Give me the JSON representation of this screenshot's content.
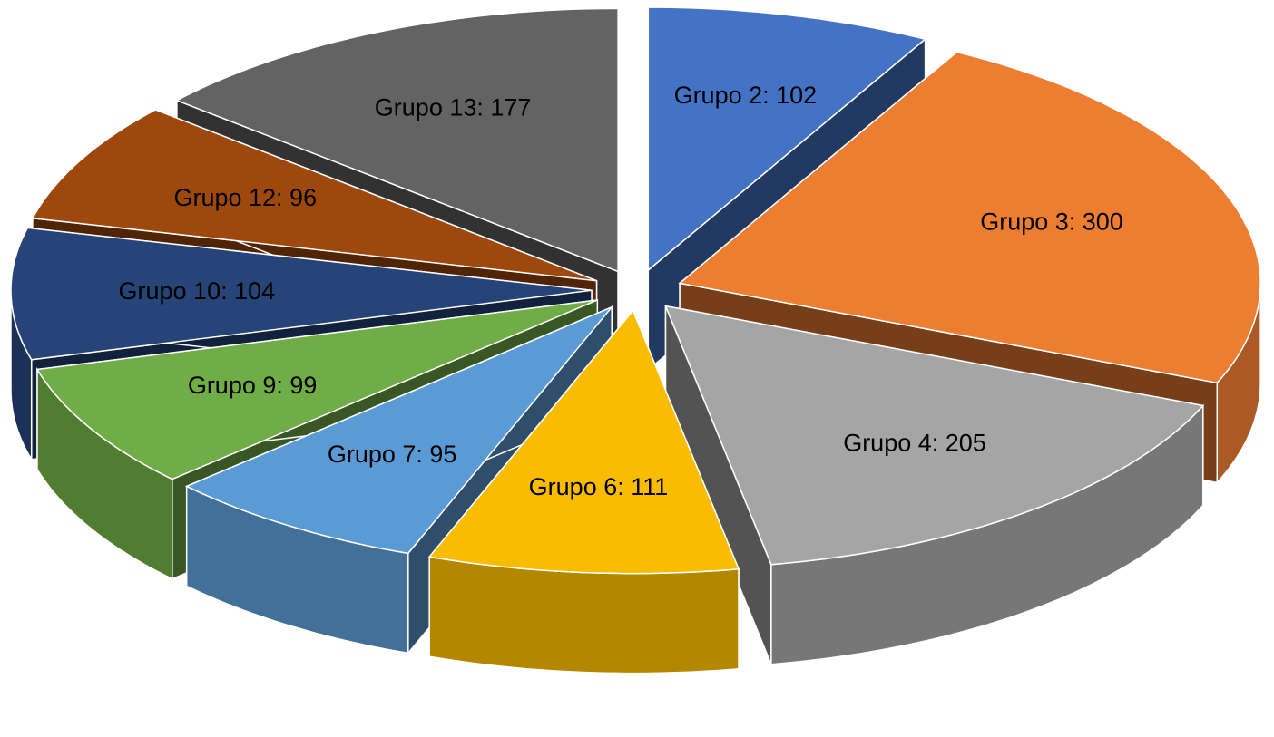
{
  "chart_data": {
    "type": "pie",
    "categories": [
      "Grupo 2",
      "Grupo 3",
      "Grupo 4",
      "Grupo 6",
      "Grupo 7",
      "Grupo 9",
      "Grupo 10",
      "Grupo 12",
      "Grupo 13"
    ],
    "values": [
      102,
      300,
      205,
      111,
      95,
      99,
      104,
      96,
      177
    ],
    "value_labels": [
      "Grupo 2:  102",
      "Grupo 3:  300",
      "Grupo 4:  205",
      "Grupo 6:  111",
      "Grupo 7:  95",
      "Grupo 9:  99",
      "Grupo 10:  104",
      "Grupo 12:  96",
      "Grupo 13:  177"
    ],
    "colors": [
      "#4472c4",
      "#ed7d31",
      "#a5a5a5",
      "#f9bc00",
      "#5b9bd5",
      "#70ad47",
      "#264478",
      "#9e480e",
      "#636363"
    ],
    "exploded": true,
    "three_d": true
  }
}
